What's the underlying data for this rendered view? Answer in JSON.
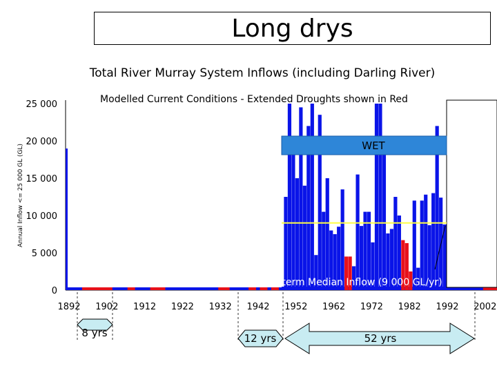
{
  "page": {
    "title": "Long drys",
    "subtitle": "Total River Murray System Inflows (including Darling River)"
  },
  "chart_data": {
    "type": "bar",
    "title": "Modelled Current Conditions - Extended Droughts shown in Red",
    "ylabel": "Annual Inflow <= 25 000 GL (GL)",
    "xlabel": "",
    "ylim": [
      0,
      25000
    ],
    "grid": false,
    "y_ticks": [
      0,
      5000,
      10000,
      15000,
      20000,
      25000
    ],
    "y_tick_labels": [
      "0",
      "5 000",
      "10 000",
      "15 000",
      "20 000",
      "25 000"
    ],
    "x_ticks": [
      1892,
      1902,
      1912,
      1922,
      1932,
      1942,
      1952,
      1962,
      1972,
      1982,
      1992,
      2002
    ],
    "x_tick_labels": [
      "1892",
      "1902",
      "1912",
      "1922",
      "1932",
      "1942",
      "1952",
      "1962",
      "1972",
      "1982",
      "1992",
      "2002"
    ],
    "median_value": 9000,
    "median_label": "Long-term Median Inflow (9 000 GL/yr)",
    "colors": {
      "normal": "#0a14e8",
      "drought": "#e8101a",
      "median": "#ffff44",
      "wet_band": "#2e86d8",
      "arrow_fill": "#c8ecf2"
    },
    "visible_bars": [
      {
        "year": 1949,
        "value": 12500,
        "color": "blue"
      },
      {
        "year": 1950,
        "value": 25000,
        "color": "blue"
      },
      {
        "year": 1951,
        "value": 18500,
        "color": "blue"
      },
      {
        "year": 1952,
        "value": 15000,
        "color": "blue"
      },
      {
        "year": 1953,
        "value": 24500,
        "color": "blue"
      },
      {
        "year": 1954,
        "value": 14000,
        "color": "blue"
      },
      {
        "year": 1955,
        "value": 22000,
        "color": "blue"
      },
      {
        "year": 1956,
        "value": 25000,
        "color": "blue"
      },
      {
        "year": 1957,
        "value": 4700,
        "color": "blue"
      },
      {
        "year": 1958,
        "value": 23500,
        "color": "blue"
      },
      {
        "year": 1959,
        "value": 10500,
        "color": "blue"
      },
      {
        "year": 1960,
        "value": 15000,
        "color": "blue"
      },
      {
        "year": 1961,
        "value": 8000,
        "color": "blue"
      },
      {
        "year": 1962,
        "value": 7500,
        "color": "blue"
      },
      {
        "year": 1963,
        "value": 8500,
        "color": "blue"
      },
      {
        "year": 1964,
        "value": 13500,
        "color": "blue"
      },
      {
        "year": 1965,
        "value": 4500,
        "color": "red"
      },
      {
        "year": 1966,
        "value": 4500,
        "color": "red"
      },
      {
        "year": 1967,
        "value": 3200,
        "color": "blue"
      },
      {
        "year": 1968,
        "value": 15500,
        "color": "blue"
      },
      {
        "year": 1969,
        "value": 8600,
        "color": "blue"
      },
      {
        "year": 1970,
        "value": 10500,
        "color": "blue"
      },
      {
        "year": 1971,
        "value": 10500,
        "color": "blue"
      },
      {
        "year": 1972,
        "value": 6400,
        "color": "blue"
      },
      {
        "year": 1973,
        "value": 25000,
        "color": "blue"
      },
      {
        "year": 1974,
        "value": 25000,
        "color": "blue"
      },
      {
        "year": 1975,
        "value": 20500,
        "color": "blue"
      },
      {
        "year": 1976,
        "value": 7600,
        "color": "blue"
      },
      {
        "year": 1977,
        "value": 8200,
        "color": "blue"
      },
      {
        "year": 1978,
        "value": 12500,
        "color": "blue"
      },
      {
        "year": 1979,
        "value": 10000,
        "color": "blue"
      },
      {
        "year": 1980,
        "value": 6700,
        "color": "red"
      },
      {
        "year": 1981,
        "value": 6300,
        "color": "red"
      },
      {
        "year": 1982,
        "value": 2500,
        "color": "red"
      },
      {
        "year": 1983,
        "value": 12000,
        "color": "blue"
      },
      {
        "year": 1984,
        "value": 3000,
        "color": "blue"
      },
      {
        "year": 1985,
        "value": 12000,
        "color": "blue"
      },
      {
        "year": 1986,
        "value": 12800,
        "color": "blue"
      },
      {
        "year": 1987,
        "value": 8700,
        "color": "blue"
      },
      {
        "year": 1988,
        "value": 13000,
        "color": "blue"
      },
      {
        "year": 1989,
        "value": 22000,
        "color": "blue"
      },
      {
        "year": 1990,
        "value": 12400,
        "color": "blue"
      },
      {
        "year": 1991,
        "value": 8800,
        "color": "blue"
      },
      {
        "year": 1992,
        "value": 19500,
        "color": "blue"
      },
      {
        "year": 1993,
        "value": 25000,
        "color": "blue"
      },
      {
        "year": 1994,
        "value": 17000,
        "color": "blue"
      }
    ],
    "annotations": {
      "wet_label": "WET",
      "drought_spans": [
        {
          "label": "8 yrs",
          "from": 1895,
          "to": 1902
        },
        {
          "label": "12 yrs",
          "from": 1937,
          "to": 1948
        },
        {
          "label": "52 yrs",
          "from": 1949,
          "to": 2000
        }
      ]
    }
  }
}
